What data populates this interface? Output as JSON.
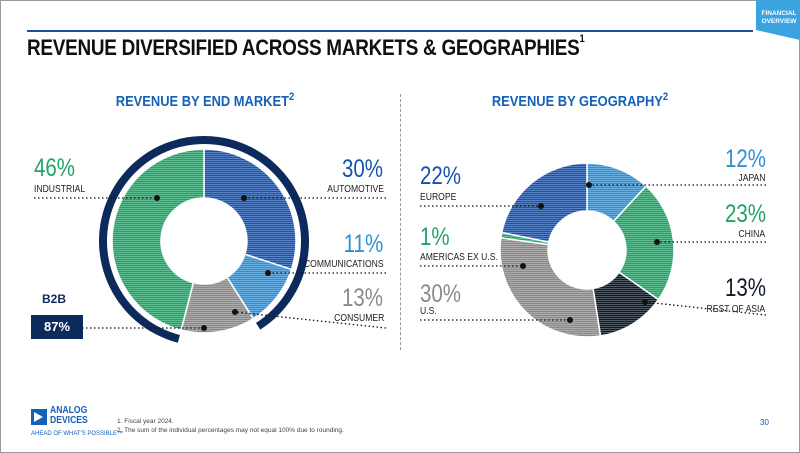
{
  "header": {
    "title": "REVENUE DIVERSIFIED ACROSS MARKETS & GEOGRAPHIES",
    "title_sup": "1",
    "tab": "FINANCIAL OVERVIEW",
    "tab_color": "#3aa3e0"
  },
  "colors": {
    "industrial": "#20a465",
    "automotive": "#1652b0",
    "communications": "#2f8fd4",
    "consumer": "#8a8a8a",
    "japan": "#2f8fd4",
    "china": "#20a465",
    "rest_of_asia": "#0f1a28",
    "us": "#8a8a8a",
    "americas_ex_us": "#20a465",
    "europe": "#1652b0",
    "b2b": "#0d2a5c"
  },
  "chart_data": [
    {
      "type": "pie",
      "title": "REVENUE BY END MARKET",
      "title_sup": "2",
      "slices": [
        {
          "label": "INDUSTRIAL",
          "value": 46,
          "display": "46%"
        },
        {
          "label": "AUTOMOTIVE",
          "value": 30,
          "display": "30%"
        },
        {
          "label": "COMMUNICATIONS",
          "value": 11,
          "display": "11%"
        },
        {
          "label": "CONSUMER",
          "value": 13,
          "display": "13%"
        }
      ],
      "b2b": {
        "label": "B2B",
        "value": 87,
        "display": "87%"
      }
    },
    {
      "type": "pie",
      "title": "REVENUE BY GEOGRAPHY",
      "title_sup": "2",
      "slices": [
        {
          "label": "JAPAN",
          "value": 12,
          "display": "12%"
        },
        {
          "label": "CHINA",
          "value": 23,
          "display": "23%"
        },
        {
          "label": "REST OF ASIA",
          "value": 13,
          "display": "13%"
        },
        {
          "label": "U.S.",
          "value": 30,
          "display": "30%"
        },
        {
          "label": "AMERICAS EX U.S.",
          "value": 1,
          "display": "1%"
        },
        {
          "label": "EUROPE",
          "value": 22,
          "display": "22%"
        }
      ]
    }
  ],
  "footer": {
    "logo_line1": "ANALOG",
    "logo_line2": "DEVICES",
    "tagline": "AHEAD OF WHAT'S POSSIBLE™",
    "note1": "1. Fiscal year 2024.",
    "note2": "2. The sum of the individual percentages may not equal 100% due to rounding.",
    "page": "30"
  }
}
